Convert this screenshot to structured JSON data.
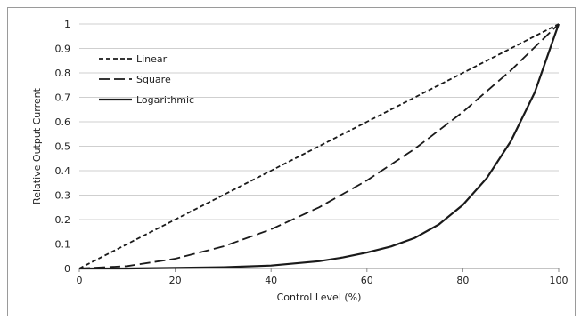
{
  "chart_data": {
    "type": "line",
    "title": "",
    "xlabel": "Control Level (%)",
    "ylabel": "Relative Output Current",
    "xlim": [
      0,
      100
    ],
    "ylim": [
      0,
      1
    ],
    "x_ticks": [
      "0",
      "20",
      "40",
      "60",
      "80",
      "100"
    ],
    "y_ticks": [
      "0",
      "0.1",
      "0.2",
      "0.3",
      "0.4",
      "0.5",
      "0.6",
      "0.7",
      "0.8",
      "0.9",
      "1"
    ],
    "grid": true,
    "legend_position": "top-left",
    "series": [
      {
        "name": "Linear",
        "style": "dotted",
        "x": [
          0,
          10,
          20,
          30,
          40,
          50,
          60,
          70,
          80,
          90,
          100
        ],
        "y": [
          0,
          0.1,
          0.2,
          0.3,
          0.4,
          0.5,
          0.6,
          0.7,
          0.8,
          0.9,
          1
        ]
      },
      {
        "name": "Square",
        "style": "dashed",
        "x": [
          0,
          10,
          20,
          30,
          40,
          50,
          60,
          70,
          80,
          90,
          100
        ],
        "y": [
          0,
          0.01,
          0.04,
          0.09,
          0.16,
          0.25,
          0.36,
          0.49,
          0.64,
          0.81,
          1
        ]
      },
      {
        "name": "Logarithmic",
        "style": "solid",
        "x": [
          0,
          10,
          20,
          30,
          40,
          50,
          55,
          60,
          65,
          70,
          75,
          80,
          85,
          90,
          95,
          100
        ],
        "y": [
          0,
          0,
          0.002,
          0.005,
          0.012,
          0.03,
          0.045,
          0.065,
          0.09,
          0.125,
          0.18,
          0.26,
          0.37,
          0.52,
          0.72,
          1
        ]
      }
    ]
  },
  "colors": {
    "line": "#1a1a1a",
    "grid": "#cfcfcf",
    "axis": "#8a8a8a"
  }
}
